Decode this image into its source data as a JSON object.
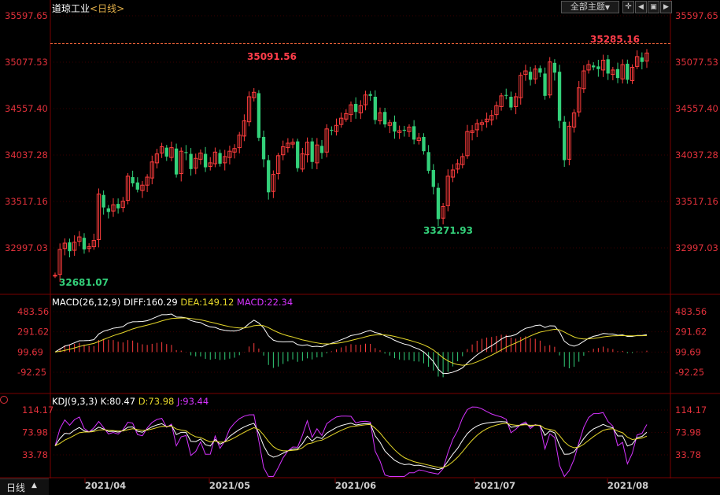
{
  "header": {
    "title": "道琼工业",
    "period": "<日线>",
    "theme_button": "全部主题",
    "theme_arrow": "▼"
  },
  "colors": {
    "up": "#ff3d3d",
    "down": "#33d17a",
    "axis_text": "#e0303a",
    "grid": "#3a0000",
    "dash": "#ff6a3d",
    "diff": "#ffffff",
    "dea": "#e6d82a",
    "macd": "#d633ff",
    "k": "#ffffff",
    "d": "#e6d82a",
    "j": "#d633ff",
    "date": "#cfcfcf"
  },
  "chart_data": [
    {
      "type": "candlestick",
      "panel": "price",
      "y_ticks": [
        "35597.65",
        "35077.53",
        "34557.40",
        "34037.28",
        "33517.16",
        "32997.03"
      ],
      "ylim": [
        32680,
        35597.65
      ],
      "annotations": {
        "high": "35091.56",
        "low": "32681.07",
        "low2": "33271.93",
        "last_high": "35285.16"
      },
      "reference_line": 35285.16,
      "x_labels": [
        "2021/04",
        "2021/05",
        "2021/06",
        "2021/07",
        "2021/08"
      ],
      "closes": [
        32690,
        32980,
        33050,
        32960,
        33060,
        33120,
        32980,
        33010,
        33080,
        33600,
        33450,
        33400,
        33480,
        33440,
        33520,
        33800,
        33720,
        33650,
        33700,
        33790,
        33960,
        34050,
        34130,
        34020,
        34120,
        33820,
        34080,
        34060,
        33880,
        34000,
        34060,
        33900,
        33950,
        34070,
        33940,
        34020,
        34080,
        34110,
        34260,
        34420,
        34690,
        34740,
        34230,
        33990,
        33620,
        33820,
        34030,
        34130,
        34170,
        34180,
        33890,
        34050,
        34180,
        33960,
        34150,
        34060,
        34330,
        34310,
        34370,
        34450,
        34500,
        34600,
        34520,
        34590,
        34710,
        34700,
        34430,
        34510,
        34380,
        34400,
        34300,
        34310,
        34310,
        34350,
        34210,
        34230,
        34080,
        33860,
        33680,
        33320,
        33460,
        33800,
        33870,
        33940,
        34020,
        34300,
        34310,
        34390,
        34400,
        34440,
        34480,
        34590,
        34700,
        34700,
        34570,
        34690,
        34930,
        34980,
        34880,
        35000,
        34960,
        34700,
        35080,
        34960,
        34420,
        33980,
        34360,
        34510,
        34790,
        34980,
        35050,
        35020,
        35000,
        35100,
        34950,
        34990,
        34900,
        35050,
        34880,
        35020,
        35140,
        35080,
        35180
      ],
      "opens": [
        32690,
        32700,
        32990,
        33060,
        32970,
        33070,
        33110,
        32990,
        33010,
        33090,
        33590,
        33440,
        33410,
        33490,
        33450,
        33530,
        33790,
        33730,
        33640,
        33700,
        33780,
        33950,
        34060,
        34120,
        34010,
        34110,
        33830,
        34070,
        34050,
        33890,
        33990,
        34050,
        33910,
        33940,
        34060,
        33950,
        34010,
        34070,
        34120,
        34250,
        34410,
        34680,
        34730,
        34240,
        33980,
        33630,
        33830,
        34040,
        34120,
        34160,
        34190,
        33880,
        34040,
        34190,
        33950,
        34140,
        34070,
        34320,
        34300,
        34380,
        34440,
        34490,
        34610,
        34510,
        34600,
        34720,
        34690,
        34420,
        34520,
        34370,
        34410,
        34290,
        34320,
        34300,
        34360,
        34200,
        34240,
        34070,
        33870,
        33670,
        33330,
        33470,
        33790,
        33880,
        33930,
        34030,
        34290,
        34320,
        34380,
        34410,
        34430,
        34490,
        34580,
        34710,
        34690,
        34580,
        34680,
        34940,
        34970,
        34890,
        35010,
        34950,
        34710,
        35070,
        34970,
        34410,
        33990,
        34350,
        34520,
        34780,
        34990,
        35040,
        35030,
        34990,
        35110,
        34940,
        35000,
        34890,
        35060,
        34870,
        35030,
        35130,
        35090
      ],
      "macd_ticks": [
        "483.56",
        "291.62",
        "99.69",
        "-92.25"
      ],
      "macd_legend": {
        "name": "MACD(26,12,9)",
        "diff": "DIFF:160.29",
        "dea": "DEA:149.12",
        "macd": "MACD:22.34"
      },
      "kdj_ticks": [
        "114.17",
        "73.98",
        "33.78"
      ],
      "kdj_legend": {
        "name": "KDJ(9,3,3)",
        "k": "K:80.47",
        "d": "D:73.98",
        "j": "J:93.44"
      }
    }
  ],
  "footer": {
    "period_label": "日线",
    "period_arrow": "▲"
  }
}
